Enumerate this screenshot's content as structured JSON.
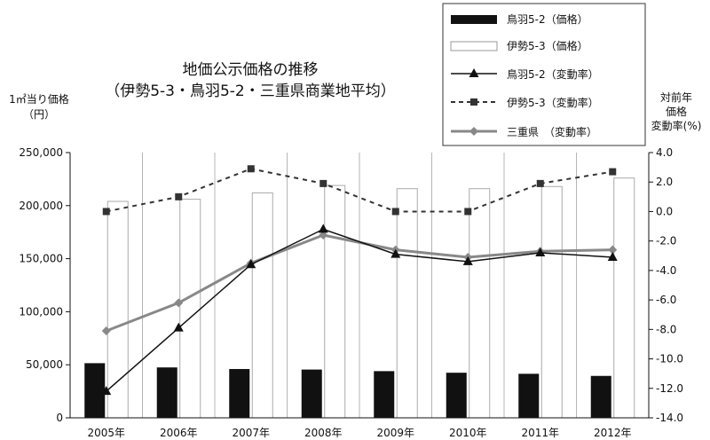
{
  "chart_data": {
    "type": "bar",
    "title": "地価公示価格の推移",
    "subtitle": "（伊勢5-3・鳥羽5-2・三重県商業地平均）",
    "ylabel_left": [
      "1㎡当り価格",
      "（円）"
    ],
    "ylabel_right": [
      "対前年",
      "価格",
      "変動率(%)"
    ],
    "categories": [
      "2005年",
      "2006年",
      "2007年",
      "2008年",
      "2009年",
      "2010年",
      "2011年",
      "2012年"
    ],
    "y_left": {
      "ylim": [
        0,
        250000
      ],
      "ticks": [
        0,
        50000,
        100000,
        150000,
        200000,
        250000
      ],
      "tick_labels": [
        "0",
        "50,000",
        "100,000",
        "150,000",
        "200,000",
        "250,000"
      ]
    },
    "y_right": {
      "ylim": [
        -14,
        4
      ],
      "ticks": [
        -14,
        -12,
        -10,
        -8,
        -6,
        -4,
        -2,
        0,
        2,
        4
      ],
      "tick_labels": [
        "-14.0",
        "-12.0",
        "-10.0",
        "-8.0",
        "-6.0",
        "-4.0",
        "-2.0",
        "0.0",
        "2.0",
        "4.0"
      ]
    },
    "grid": "vertical lines at category boundaries",
    "legend_position": "top-right",
    "series": [
      {
        "name": "鳥羽5-2（価格）",
        "kind": "bar",
        "axis": "left",
        "color": "#111111",
        "values": [
          51500,
          47500,
          46000,
          45500,
          44000,
          42500,
          41500,
          39500
        ]
      },
      {
        "name": "伊勢5-3（価格）",
        "kind": "bar",
        "axis": "left",
        "color": "#ffffff",
        "values": [
          204000,
          206000,
          212000,
          219000,
          216000,
          216000,
          218000,
          226000
        ]
      },
      {
        "name": "鳥羽5-2（変動率）",
        "kind": "line",
        "axis": "right",
        "color": "#111111",
        "marker": "triangle",
        "dash": "solid",
        "values": [
          -12.2,
          -7.9,
          -3.6,
          -1.2,
          -2.9,
          -3.4,
          -2.8,
          -3.1
        ]
      },
      {
        "name": "伊勢5-3（変動率）",
        "kind": "line",
        "axis": "right",
        "color": "#333333",
        "marker": "square",
        "dash": "dashed",
        "values": [
          0.0,
          1.0,
          2.9,
          1.9,
          0.0,
          0.0,
          1.9,
          2.7
        ]
      },
      {
        "name": "三重県　（変動率）",
        "kind": "line",
        "axis": "right",
        "color": "#888888",
        "marker": "diamond",
        "dash": "solid",
        "values": [
          -8.1,
          -6.2,
          -3.5,
          -1.6,
          -2.6,
          -3.1,
          -2.7,
          -2.6
        ]
      }
    ]
  }
}
